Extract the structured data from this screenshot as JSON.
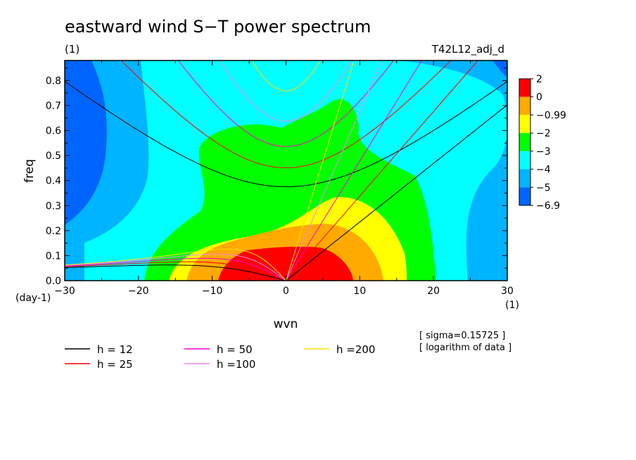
{
  "chart_data": {
    "type": "heatmap",
    "title": "eastward wind S−T power spectrum",
    "subtitle_left": "(1)",
    "subtitle_right": "T42L12_adj_d",
    "xlabel": "wvn",
    "ylabel": "freq",
    "x_unit": "(1)",
    "y_unit": "(day-1)",
    "xlim": [
      -30,
      30
    ],
    "ylim": [
      0.0,
      0.88
    ],
    "x_ticks": [
      -30,
      -20,
      -10,
      0,
      10,
      20,
      30
    ],
    "y_ticks": [
      0.0,
      0.1,
      0.2,
      0.3,
      0.4,
      0.5,
      0.6,
      0.7,
      0.8
    ],
    "x_tick_labels": [
      "−30",
      "−20",
      "−10",
      "0",
      "10",
      "20",
      "30"
    ],
    "y_tick_labels": [
      "0.0",
      "0.1",
      "0.2",
      "0.3",
      "0.4",
      "0.5",
      "0.6",
      "0.7",
      "0.8"
    ],
    "colorbar": {
      "labels": [
        "2",
        "0",
        "−0.99",
        "−2",
        "−3",
        "−4",
        "−5",
        "−6.9"
      ],
      "levels": [
        -6.9,
        -5,
        -4,
        -3,
        -2,
        -0.99,
        0,
        2
      ],
      "colors": [
        "#0064ff",
        "#00b4ff",
        "#00ffff",
        "#00ff00",
        "#ffff00",
        "#ffaa00",
        "#ff0000"
      ]
    },
    "dispersion_curves": [
      {
        "name": "h = 12",
        "h": 12,
        "color": "#000000"
      },
      {
        "name": "h = 25",
        "h": 25,
        "color": "#ff0000"
      },
      {
        "name": "h = 50",
        "h": 50,
        "color": "#ff00cc"
      },
      {
        "name": "h =100",
        "h": 100,
        "color": "#ee88ee"
      },
      {
        "name": "h =200",
        "h": 200,
        "color": "#ffdd00"
      }
    ],
    "annotations": [
      "[ sigma=0.15725 ]",
      "[ logarithm of data ]"
    ]
  }
}
